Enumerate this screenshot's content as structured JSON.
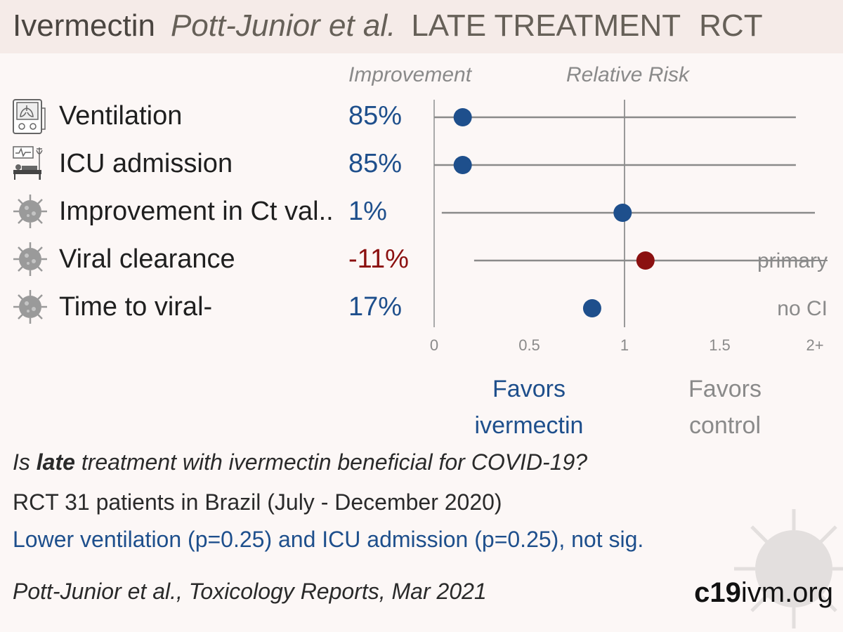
{
  "header": {
    "drug": "Ivermectin",
    "authors": "Pott-Junior et al.",
    "stage": "LATE TREATMENT",
    "design": "RCT"
  },
  "columns": {
    "improvement": "Improvement",
    "relative_risk": "Relative Risk"
  },
  "rows": [
    {
      "label": "Ventilation",
      "value": "85%",
      "icon": "ventilator-icon",
      "color": "#1e4f8c"
    },
    {
      "label": "ICU admission",
      "value": "85%",
      "icon": "icu-bed-icon",
      "color": "#1e4f8c"
    },
    {
      "label": "Improvement in Ct val..",
      "value": "1%",
      "icon": "virus-icon",
      "color": "#1e4f8c"
    },
    {
      "label": "Viral clearance",
      "value": "-11%",
      "icon": "virus-icon",
      "color": "#8b1010"
    },
    {
      "label": "Time to viral-",
      "value": "17%",
      "icon": "virus-icon",
      "color": "#1e4f8c"
    }
  ],
  "chart_data": {
    "type": "scatter",
    "subtype": "forest-plot",
    "x_axis": {
      "ticks": [
        "0",
        "0.5",
        "1",
        "1.5",
        "2+"
      ],
      "range": [
        0,
        2
      ]
    },
    "categories": [
      "Ventilation",
      "ICU admission",
      "Improvement in Ct val..",
      "Viral clearance",
      "Time to viral-"
    ],
    "series": [
      {
        "name": "",
        "points": [
          {
            "rr": 0.15,
            "ci": [
              0.0,
              1.9
            ],
            "color": "#1e4f8c"
          },
          {
            "rr": 0.15,
            "ci": [
              0.0,
              1.9
            ],
            "color": "#1e4f8c"
          },
          {
            "rr": 0.99,
            "ci": [
              0.04,
              2.0
            ],
            "color": "#1e4f8c"
          },
          {
            "rr": 1.11,
            "ci": [
              0.21,
              2.0
            ],
            "color": "#8b1010"
          },
          {
            "rr": 0.83,
            "ci": null,
            "color": "#1e4f8c"
          }
        ]
      }
    ],
    "annotations": [
      "primary",
      "no CI"
    ]
  },
  "favors": {
    "left": [
      "Favors",
      "ivermectin"
    ],
    "right": [
      "Favors",
      "control"
    ]
  },
  "summary": {
    "question_pre": "Is ",
    "question_bold": "late",
    "question_post": " treatment with ivermectin beneficial for COVID-19?",
    "design_line": "RCT 31 patients in Brazil (July - December 2020)",
    "result_line": "Lower ventilation (p=0.25) and ICU admission (p=0.25), not sig."
  },
  "citation": "Pott-Junior et al., Toxicology Reports, Mar 2021",
  "brand": {
    "bold": "c19",
    "rest": "ivm.org"
  },
  "colors": {
    "blue": "#1e4f8c",
    "red": "#8b1010",
    "gray": "#8a8a8a"
  }
}
